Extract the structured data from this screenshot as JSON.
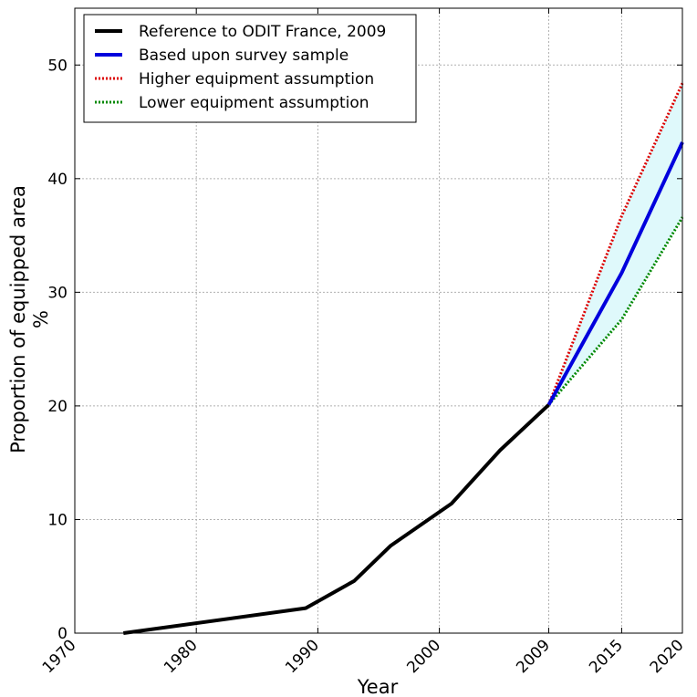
{
  "chart_data": {
    "type": "line",
    "title": "",
    "xlabel": "Year",
    "ylabel_lines": [
      "Proportion of equipped area",
      "%"
    ],
    "xlim": [
      1970,
      2020
    ],
    "ylim": [
      0,
      55
    ],
    "xticks": [
      1970,
      1980,
      1990,
      2000,
      2009,
      2015,
      2020
    ],
    "xtick_labels": [
      "1970",
      "1980",
      "1990",
      "2000",
      "2009",
      "2015",
      "2020"
    ],
    "yticks": [
      0,
      10,
      20,
      30,
      40,
      50
    ],
    "ytick_labels": [
      "0",
      "10",
      "20",
      "30",
      "40",
      "50"
    ],
    "grid": true,
    "legend_position": "top-left",
    "series": [
      {
        "name": "Reference to ODIT France, 2009",
        "color": "#000000",
        "style": "solid",
        "x": [
          1974,
          1989,
          1993,
          1996,
          2001,
          2005,
          2009
        ],
        "y": [
          0,
          2.2,
          4.6,
          7.7,
          11.4,
          16.1,
          20.1
        ]
      },
      {
        "name": "Based upon survey sample",
        "color": "#0000dd",
        "style": "solid",
        "x": [
          2009,
          2015,
          2020
        ],
        "y": [
          20.1,
          31.7,
          43.2
        ]
      },
      {
        "name": "Higher equipment assumption",
        "color": "#dd0000",
        "style": "dotted",
        "x": [
          2009,
          2015,
          2020
        ],
        "y": [
          20.1,
          36.7,
          48.4
        ]
      },
      {
        "name": "Lower equipment assumption",
        "color": "#008800",
        "style": "dotted",
        "x": [
          2009,
          2015,
          2020
        ],
        "y": [
          20.1,
          27.6,
          36.6
        ]
      }
    ],
    "band": {
      "color": "#dff9fb",
      "between": [
        "Higher equipment assumption",
        "Lower equipment assumption"
      ]
    }
  }
}
